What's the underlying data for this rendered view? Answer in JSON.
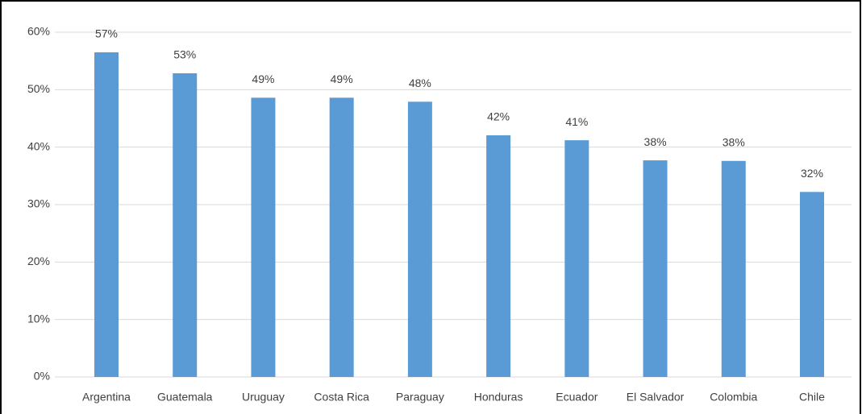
{
  "chart_data": {
    "type": "bar",
    "categories": [
      "Argentina",
      "Guatemala",
      "Uruguay",
      "Costa Rica",
      "Paraguay",
      "Honduras",
      "Ecuador",
      "El Salvador",
      "Colombia",
      "Chile"
    ],
    "values": [
      56.5,
      52.85,
      48.6,
      48.6,
      47.9,
      42.06,
      41.2,
      37.7,
      37.6,
      32.2
    ],
    "value_labels": [
      "57%",
      "53%",
      "49%",
      "49%",
      "48%",
      "42%",
      "41%",
      "38%",
      "38%",
      "32%"
    ],
    "color": "#5b9bd5",
    "ylim": [
      0,
      60
    ],
    "yticks": [
      {
        "value": 0,
        "label": "0%"
      },
      {
        "value": 10,
        "label": "10%"
      },
      {
        "value": 20,
        "label": "20%"
      },
      {
        "value": 30,
        "label": "30%"
      },
      {
        "value": 40,
        "label": "40%"
      },
      {
        "value": 50,
        "label": "50%"
      },
      {
        "value": 60,
        "label": "60%"
      }
    ],
    "grid": true
  }
}
